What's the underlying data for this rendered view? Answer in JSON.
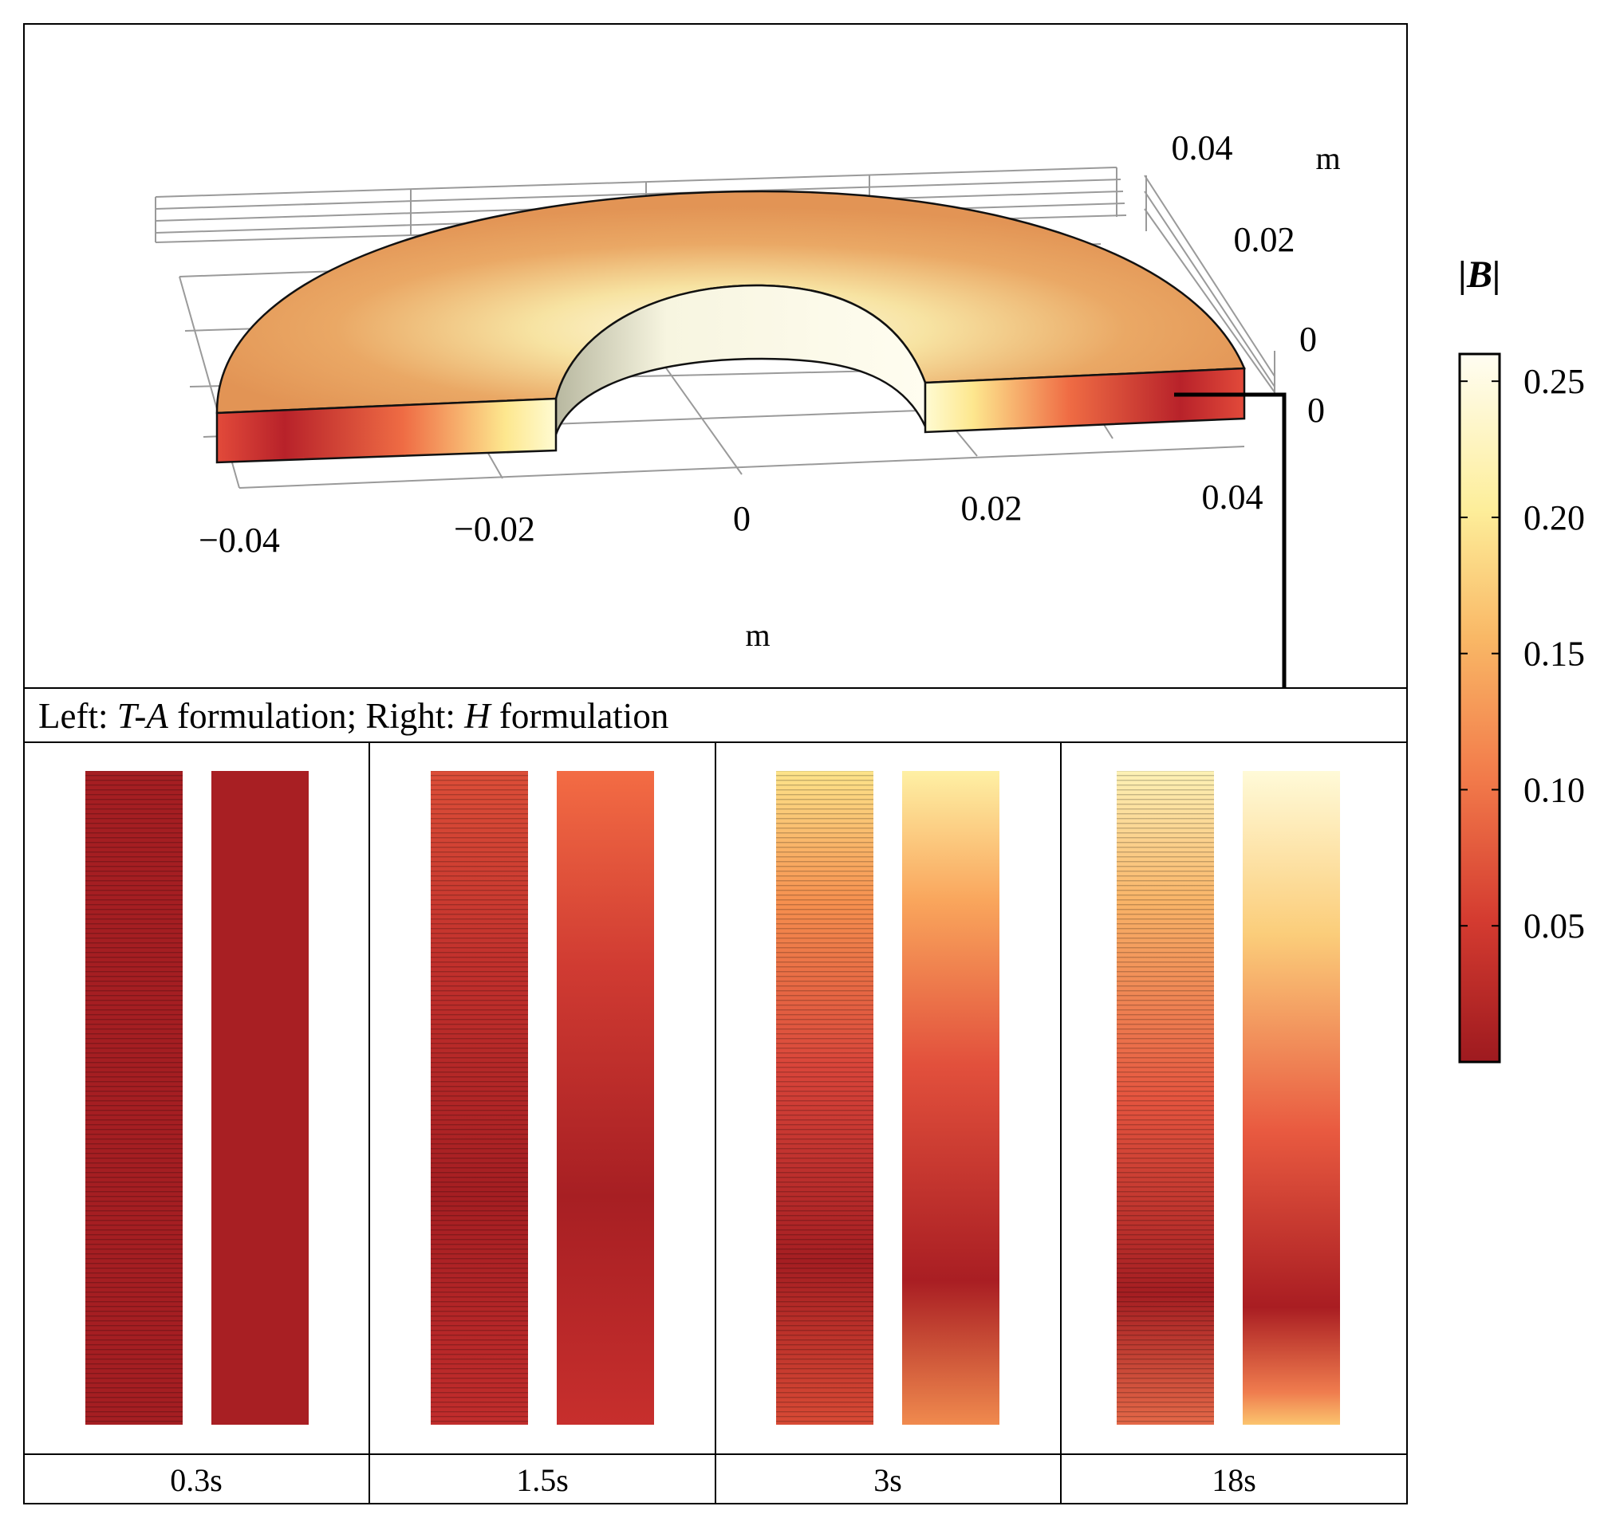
{
  "plot3d": {
    "x_ticks": [
      "−0.04",
      "−0.02",
      "0",
      "0.02",
      "0.04"
    ],
    "y_ticks": [
      "0",
      "0.02",
      "0.04"
    ],
    "z_tick": "0",
    "x_unit": "m",
    "y_unit": "m"
  },
  "caption": {
    "left_label": "Left: ",
    "left_formulation": "T-A",
    "middle": " formulation; Right: ",
    "right_formulation": "H",
    "end": " formulation"
  },
  "panels": [
    {
      "time": "0.3s"
    },
    {
      "time": "1.5s"
    },
    {
      "time": "3s"
    },
    {
      "time": "18s"
    }
  ],
  "colorbar": {
    "title": "|B|",
    "ticks": [
      "0.25",
      "0.20",
      "0.15",
      "0.10",
      "0.05"
    ],
    "tick_values": [
      0.25,
      0.2,
      0.15,
      0.1,
      0.05
    ],
    "range": [
      0.0,
      0.26
    ]
  }
}
